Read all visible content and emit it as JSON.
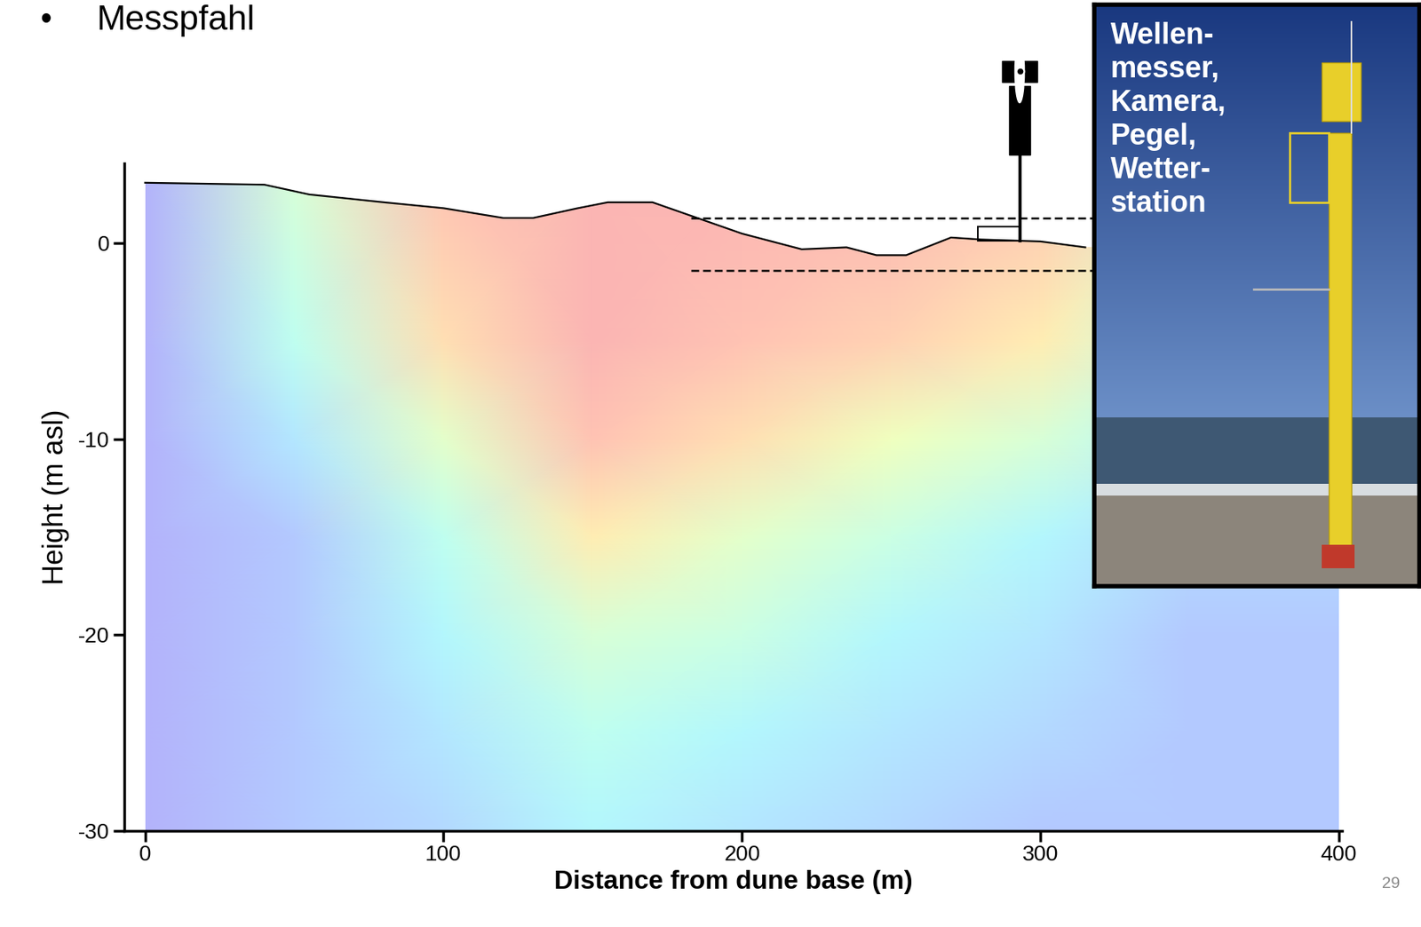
{
  "slide": {
    "bullet_symbol": "•",
    "bullet_text": "Messpfahl",
    "page": 29,
    "inset_text": [
      "Wellen-",
      "messer,",
      "Kamera,",
      "Pegel,",
      "Wetter-",
      "station"
    ]
  },
  "chart_data": {
    "type": "section",
    "xlabel": "Distance from dune base (m)",
    "ylabel": "Height (m asl)",
    "xlim": [
      -7,
      401
    ],
    "ylim": [
      -30,
      4.1
    ],
    "xticks": [
      0,
      100,
      200,
      300,
      400
    ],
    "yticks": [
      0,
      -10,
      -20,
      -30
    ],
    "profile": {
      "x": [
        0,
        40,
        55,
        80,
        100,
        120,
        130,
        145,
        155,
        170,
        185,
        200,
        220,
        235,
        245,
        255,
        270,
        280,
        300,
        315
      ],
      "heights": [
        3.1,
        3.0,
        2.5,
        2.1,
        1.8,
        1.3,
        1.3,
        1.8,
        2.1,
        2.1,
        1.3,
        0.5,
        -0.3,
        -0.2,
        -0.6,
        -0.6,
        0.3,
        0.2,
        0.1,
        -0.2
      ]
    },
    "field": {
      "x": [
        0,
        50,
        100,
        150,
        200,
        250,
        300,
        350,
        400
      ],
      "heights": [
        3.5,
        -5,
        -10,
        -15,
        -20,
        -25,
        -30
      ],
      "values": [
        [
          0.1,
          0.5,
          0.85,
          0.9,
          0.9,
          0.9,
          0.85,
          0.6,
          0.4
        ],
        [
          0.1,
          0.4,
          0.75,
          0.9,
          0.85,
          0.8,
          0.7,
          0.45,
          0.35
        ],
        [
          0.1,
          0.3,
          0.55,
          0.85,
          0.75,
          0.6,
          0.5,
          0.35,
          0.3
        ],
        [
          0.1,
          0.2,
          0.4,
          0.7,
          0.55,
          0.45,
          0.35,
          0.25,
          0.25
        ],
        [
          0.1,
          0.2,
          0.35,
          0.5,
          0.45,
          0.35,
          0.3,
          0.2,
          0.2
        ],
        [
          0.1,
          0.2,
          0.3,
          0.4,
          0.35,
          0.3,
          0.25,
          0.2,
          0.2
        ],
        [
          0.1,
          0.2,
          0.25,
          0.35,
          0.3,
          0.25,
          0.2,
          0.2,
          0.2
        ]
      ]
    },
    "levels": {
      "y": [
        1.3,
        -1.4
      ],
      "x_start": 183
    },
    "pole_x": 293
  }
}
